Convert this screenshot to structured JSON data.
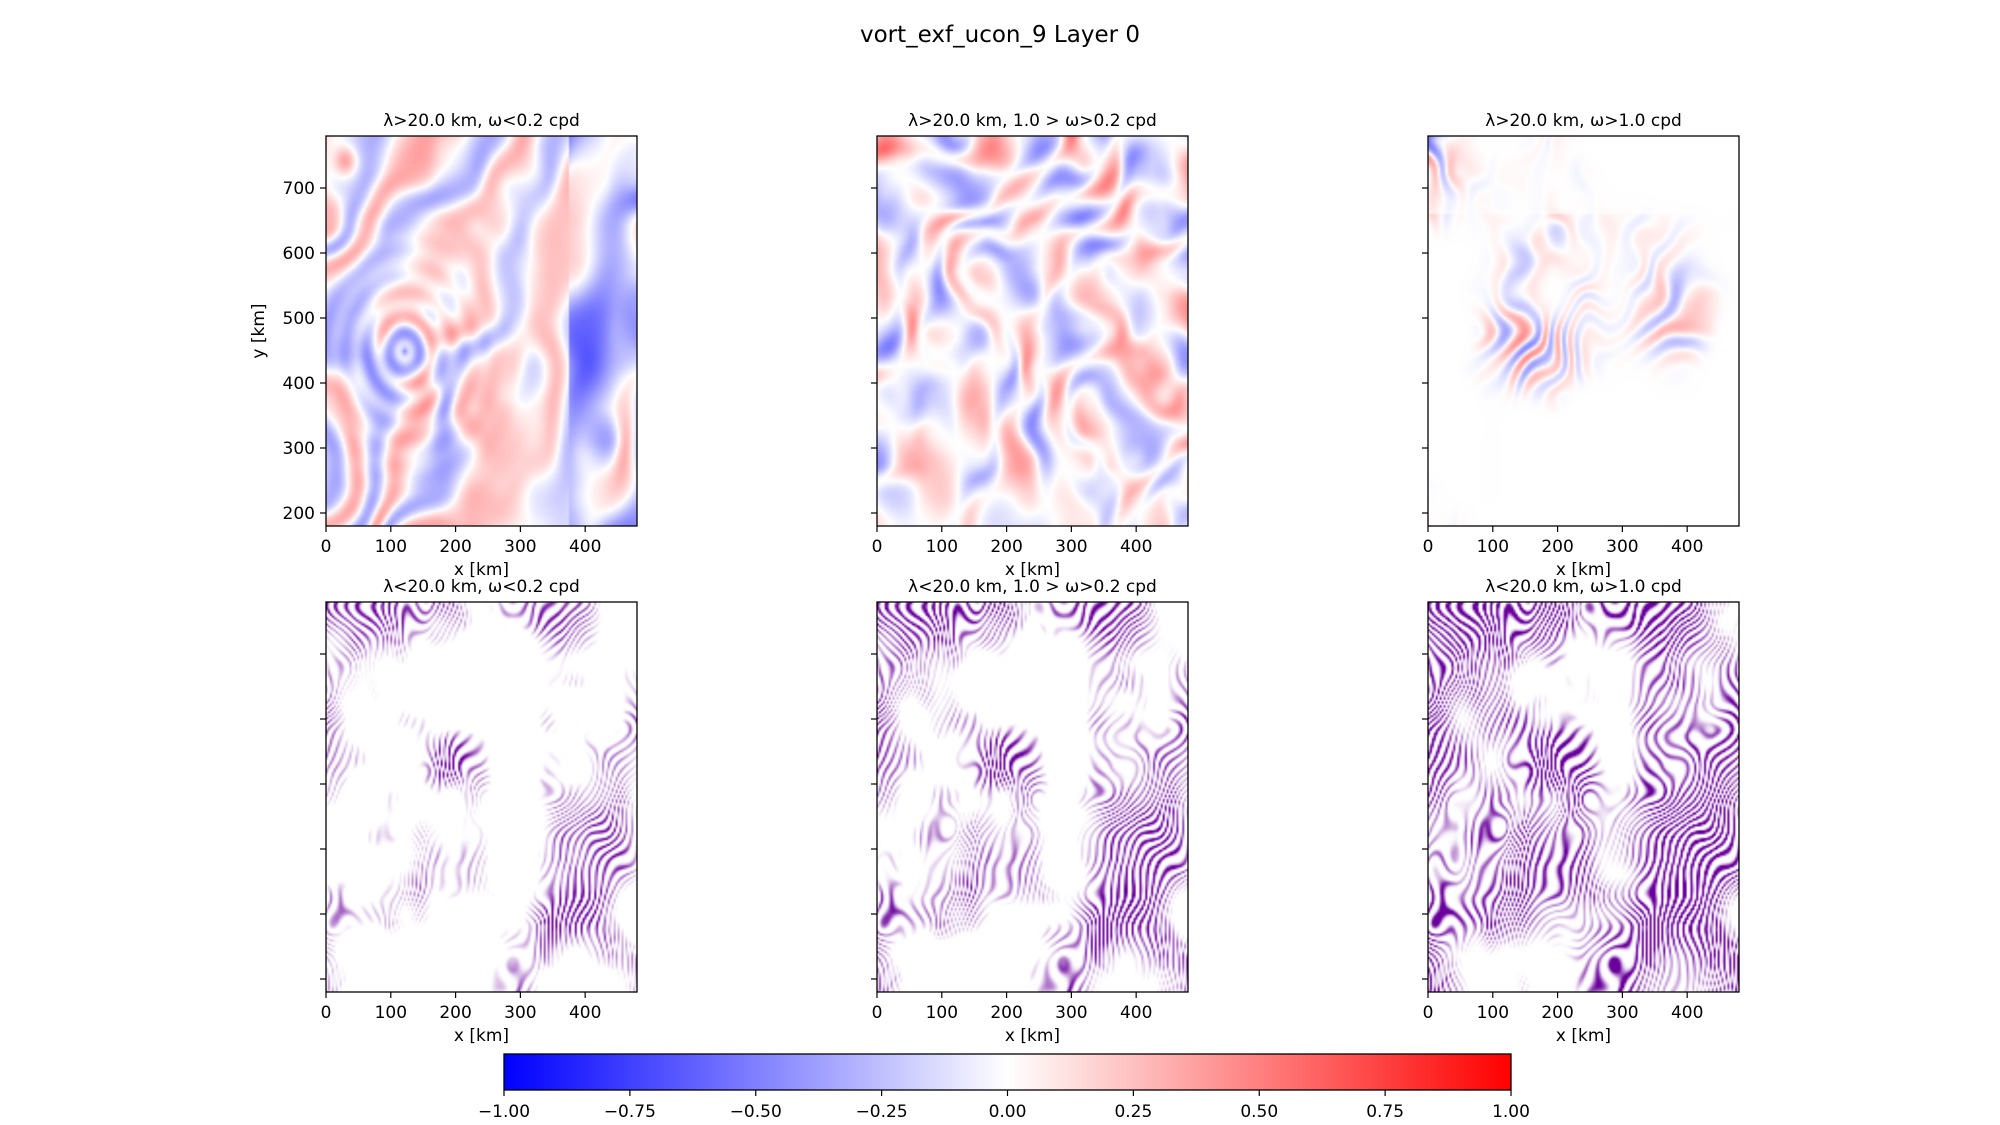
{
  "figure": {
    "title": "vort_exf_ucon_9 Layer 0"
  },
  "chart_data": {
    "type": "heatmap",
    "layout": "2x3 grid",
    "panels": [
      {
        "id": "p00",
        "title": "λ>20.0 km, ω<0.2 cpd",
        "xlabel": "x [km]",
        "ylabel": "y [km]",
        "xlim": [
          0,
          480
        ],
        "ylim": [
          180,
          780
        ],
        "xticks": [
          0,
          100,
          200,
          300,
          400
        ],
        "yticks": [
          200,
          300,
          400,
          500,
          600,
          700
        ],
        "show_ytick_labels": true,
        "colormap": "bwr",
        "pattern": "large-eddy"
      },
      {
        "id": "p01",
        "title": "λ>20.0 km, 1.0 > ω>0.2 cpd",
        "xlabel": "x [km]",
        "ylabel": "",
        "xlim": [
          0,
          480
        ],
        "ylim": [
          180,
          780
        ],
        "xticks": [
          0,
          100,
          200,
          300,
          400
        ],
        "yticks": [
          200,
          300,
          400,
          500,
          600,
          700
        ],
        "show_ytick_labels": false,
        "colormap": "bwr",
        "pattern": "medium-blobs"
      },
      {
        "id": "p02",
        "title": "λ>20.0 km, ω>1.0 cpd",
        "xlabel": "x [km]",
        "ylabel": "",
        "xlim": [
          0,
          480
        ],
        "ylim": [
          180,
          780
        ],
        "xticks": [
          0,
          100,
          200,
          300,
          400
        ],
        "yticks": [
          200,
          300,
          400,
          500,
          600,
          700
        ],
        "show_ytick_labels": false,
        "colormap": "bwr",
        "pattern": "faint-waves"
      },
      {
        "id": "p10",
        "title": "λ<20.0 km, ω<0.2 cpd",
        "xlabel": "x [km]",
        "ylabel": "",
        "xlim": [
          0,
          480
        ],
        "ylim": [
          180,
          780
        ],
        "xticks": [
          0,
          100,
          200,
          300,
          400
        ],
        "yticks": [
          200,
          300,
          400,
          500,
          600,
          700
        ],
        "show_ytick_labels": false,
        "colormap": "bwr",
        "pattern": "fine-sparse"
      },
      {
        "id": "p11",
        "title": "λ<20.0 km, 1.0 > ω>0.2 cpd",
        "xlabel": "x [km]",
        "ylabel": "",
        "xlim": [
          0,
          480
        ],
        "ylim": [
          180,
          780
        ],
        "xticks": [
          0,
          100,
          200,
          300,
          400
        ],
        "yticks": [
          200,
          300,
          400,
          500,
          600,
          700
        ],
        "show_ytick_labels": false,
        "colormap": "bwr",
        "pattern": "fine-medium"
      },
      {
        "id": "p12",
        "title": "λ<20.0 km, ω>1.0 cpd",
        "xlabel": "x [km]",
        "ylabel": "",
        "xlim": [
          0,
          480
        ],
        "ylim": [
          180,
          780
        ],
        "xticks": [
          0,
          100,
          200,
          300,
          400
        ],
        "yticks": [
          200,
          300,
          400,
          500,
          600,
          700
        ],
        "show_ytick_labels": false,
        "colormap": "bwr",
        "pattern": "fine-dense"
      }
    ],
    "colorbar": {
      "orientation": "horizontal",
      "vmin": -1.0,
      "vmax": 1.0,
      "ticks": [
        -1.0,
        -0.75,
        -0.5,
        -0.25,
        0.0,
        0.25,
        0.5,
        0.75,
        1.0
      ],
      "tick_labels": [
        "−1.00",
        "−0.75",
        "−0.50",
        "−0.25",
        "0.00",
        "0.25",
        "0.50",
        "0.75",
        "1.00"
      ],
      "colors": {
        "low": "#0000ff",
        "mid": "#ffffff",
        "high": "#ff0000"
      }
    }
  }
}
